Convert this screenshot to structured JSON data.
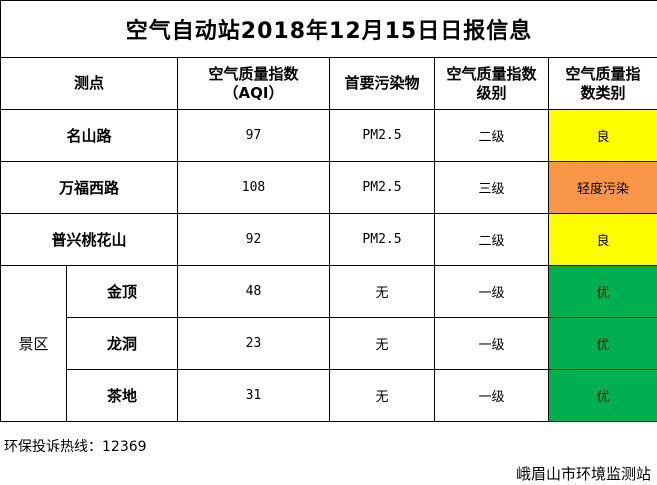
{
  "title": "空气自动站2018年12月15日日报信息",
  "headers": {
    "station": "测点",
    "aqi_line1": "空气质量指数",
    "aqi_line2": "（AQI）",
    "pollutant": "首要污染物",
    "level_line1": "空气质量指数",
    "level_line2": "级别",
    "category_line1": "空气质量指",
    "category_line2": "数类别"
  },
  "rows": [
    {
      "station": "名山路",
      "aqi": "97",
      "pollutant": "PM2.5",
      "level": "二级",
      "category": "良",
      "color": "#ffff00"
    },
    {
      "station": "万福西路",
      "aqi": "108",
      "pollutant": "PM2.5",
      "level": "三级",
      "category": "轻度污染",
      "color": "#f79646"
    },
    {
      "station": "普兴桃花山",
      "aqi": "92",
      "pollutant": "PM2.5",
      "level": "二级",
      "category": "良",
      "color": "#ffff00"
    }
  ],
  "scenic_group": "景区",
  "scenic_rows": [
    {
      "station": "金顶",
      "aqi": "48",
      "pollutant": "无",
      "level": "一级",
      "category": "优",
      "color": "#00b050"
    },
    {
      "station": "龙洞",
      "aqi": "23",
      "pollutant": "无",
      "level": "一级",
      "category": "优",
      "color": "#00b050"
    },
    {
      "station": "茶地",
      "aqi": "31",
      "pollutant": "无",
      "level": "一级",
      "category": "优",
      "color": "#00b050"
    }
  ],
  "footer": {
    "hotline": "环保投诉热线：12369",
    "organization": "峨眉山市环境监测站"
  }
}
